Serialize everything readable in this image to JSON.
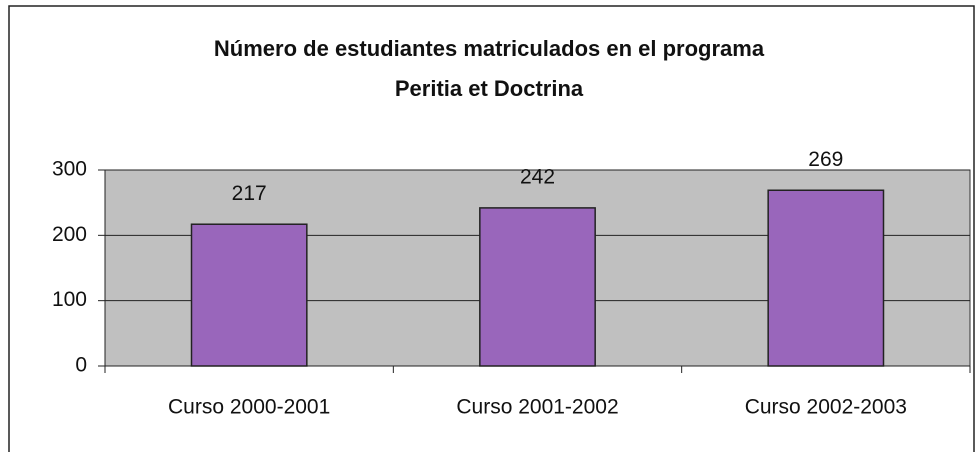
{
  "chart_data": {
    "type": "bar",
    "title": [
      "Número de estudiantes matriculados en el programa",
      "Peritia et Doctrina"
    ],
    "categories": [
      "Curso 2000-2001",
      "Curso 2001-2002",
      "Curso 2002-2003"
    ],
    "values": [
      217,
      242,
      269
    ],
    "color": "#9966bb",
    "ylim": [
      0,
      300
    ],
    "yticks": [
      0,
      100,
      200,
      300
    ],
    "grid": true
  }
}
